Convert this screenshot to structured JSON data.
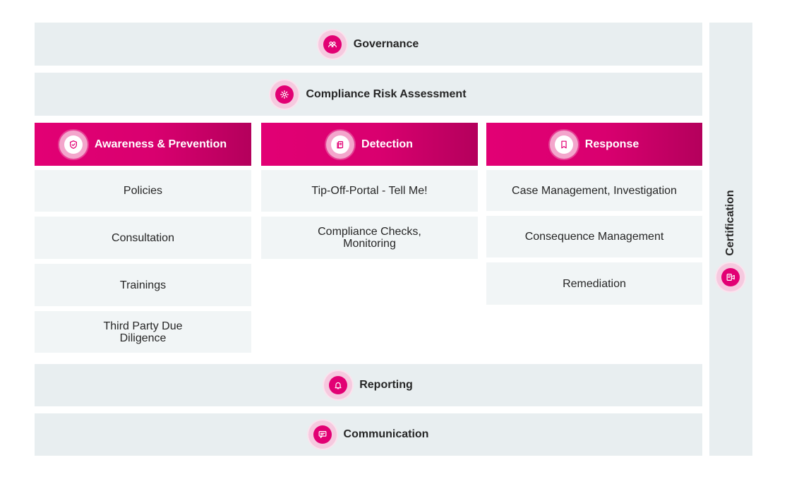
{
  "bands": {
    "governance": "Governance",
    "risk_assessment": "Compliance Risk Assessment",
    "reporting": "Reporting",
    "communication": "Communication"
  },
  "columns": [
    {
      "title": "Awareness & Prevention",
      "icon": "shield-check-icon",
      "items": [
        "Policies",
        "Consultation",
        "Trainings",
        "Third Party Due Diligence"
      ]
    },
    {
      "title": "Detection",
      "icon": "documents-icon",
      "items": [
        "Tip-Off-Portal - Tell Me!",
        "Compliance Checks, Monitoring"
      ]
    },
    {
      "title": "Response",
      "icon": "bookmark-icon",
      "items": [
        "Case Management, Investigation",
        "Consequence Management",
        "Remediation"
      ]
    }
  ],
  "certification": "Certification",
  "colors": {
    "magenta": "#e20074",
    "band_bg": "#e8eef0",
    "cell_bg": "#f1f5f6"
  }
}
